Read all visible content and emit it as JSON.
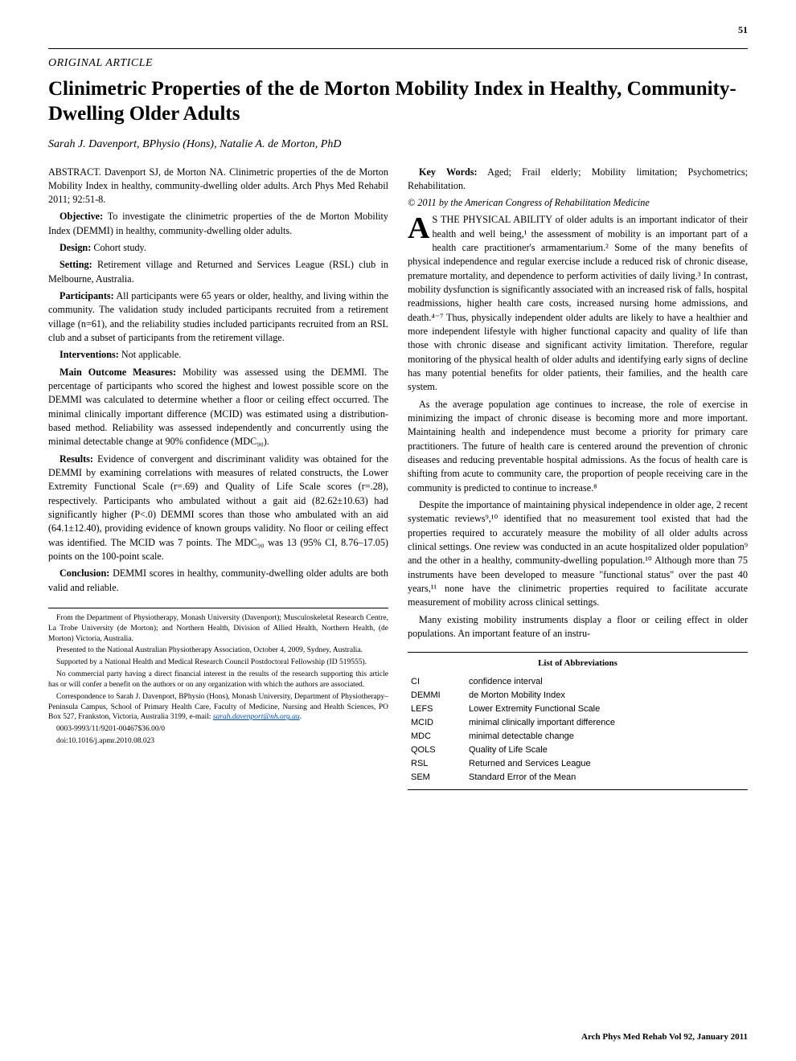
{
  "page_number": "51",
  "section_label": "ORIGINAL ARTICLE",
  "title": "Clinimetric Properties of the de Morton Mobility Index in Healthy, Community-Dwelling Older Adults",
  "authors": "Sarah J. Davenport, BPhysio (Hons), Natalie A. de Morton, PhD",
  "abstract": {
    "citation": "ABSTRACT. Davenport SJ, de Morton NA. Clinimetric properties of the de Morton Mobility Index in healthy, community-dwelling older adults. Arch Phys Med Rehabil 2011; 92:51-8.",
    "objective_label": "Objective:",
    "objective": "To investigate the clinimetric properties of the de Morton Mobility Index (DEMMI) in healthy, community-dwelling older adults.",
    "design_label": "Design:",
    "design": "Cohort study.",
    "setting_label": "Setting:",
    "setting": "Retirement village and Returned and Services League (RSL) club in Melbourne, Australia.",
    "participants_label": "Participants:",
    "participants": "All participants were 65 years or older, healthy, and living within the community. The validation study included participants recruited from a retirement village (n=61), and the reliability studies included participants recruited from an RSL club and a subset of participants from the retirement village.",
    "interventions_label": "Interventions:",
    "interventions": "Not applicable.",
    "measures_label": "Main Outcome Measures:",
    "measures": "Mobility was assessed using the DEMMI. The percentage of participants who scored the highest and lowest possible score on the DEMMI was calculated to determine whether a floor or ceiling effect occurred. The minimal clinically important difference (MCID) was estimated using a distribution-based method. Reliability was assessed independently and concurrently using the minimal detectable change at 90% confidence (MDC₉₀).",
    "results_label": "Results:",
    "results": "Evidence of convergent and discriminant validity was obtained for the DEMMI by examining correlations with measures of related constructs, the Lower Extremity Functional Scale (r=.69) and Quality of Life Scale scores (r=.28), respectively. Participants who ambulated without a gait aid (82.62±10.63) had significantly higher (P<.0) DEMMI scores than those who ambulated with an aid (64.1±12.40), providing evidence of known groups validity. No floor or ceiling effect was identified. The MCID was 7 points. The MDC₉₀ was 13 (95% CI, 8.76–17.05) points on the 100-point scale.",
    "conclusion_label": "Conclusion:",
    "conclusion": "DEMMI scores in healthy, community-dwelling older adults are both valid and reliable."
  },
  "keywords_label": "Key Words:",
  "keywords": "Aged; Frail elderly; Mobility limitation; Psychometrics; Rehabilitation.",
  "copyright": "© 2011 by the American Congress of Rehabilitation Medicine",
  "body": {
    "dropcap": "A",
    "p1": "S THE PHYSICAL ABILITY of older adults is an important indicator of their health and well being,¹ the assessment of mobility is an important part of a health care practitioner's armamentarium.² Some of the many benefits of physical independence and regular exercise include a reduced risk of chronic disease, premature mortality, and dependence to perform activities of daily living.³ In contrast, mobility dysfunction is significantly associated with an increased risk of falls, hospital readmissions, higher health care costs, increased nursing home admissions, and death.⁴⁻⁷ Thus, physically independent older adults are likely to have a healthier and more independent lifestyle with higher functional capacity and quality of life than those with chronic disease and significant activity limitation. Therefore, regular monitoring of the physical health of older adults and identifying early signs of decline has many potential benefits for older patients, their families, and the health care system.",
    "p2": "As the average population age continues to increase, the role of exercise in minimizing the impact of chronic disease is becoming more and more important. Maintaining health and independence must become a priority for primary care practitioners. The future of health care is centered around the prevention of chronic diseases and reducing preventable hospital admissions. As the focus of health care is shifting from acute to community care, the proportion of people receiving care in the community is predicted to continue to increase.⁸",
    "p3": "Despite the importance of maintaining physical independence in older age, 2 recent systematic reviews⁹,¹⁰ identified that no measurement tool existed that had the properties required to accurately measure the mobility of all older adults across clinical settings. One review was conducted in an acute hospitalized older population⁹ and the other in a healthy, community-dwelling population.¹⁰ Although more than 75 instruments have been developed to measure \"functional status\" over the past 40 years,¹¹ none have the clinimetric properties required to facilitate accurate measurement of mobility across clinical settings.",
    "p4": "Many existing mobility instruments display a floor or ceiling effect in older populations. An important feature of an instru-"
  },
  "footnotes": {
    "f1": "From the Department of Physiotherapy, Monash University (Davenport); Musculoskeletal Research Centre, La Trobe University (de Morton); and Northern Health, Division of Allied Health, Northern Health, (de Morton) Victoria, Australia.",
    "f2": "Presented to the National Australian Physiotherapy Association, October 4, 2009, Sydney, Australia.",
    "f3": "Supported by a National Health and Medical Research Council Postdoctoral Fellowship (ID 519555).",
    "f4": "No commercial party having a direct financial interest in the results of the research supporting this article has or will confer a benefit on the authors or on any organization with which the authors are associated.",
    "f5_pre": "Correspondence to Sarah J. Davenport, BPhysio (Hons), Monash University, Department of Physiotherapy–Peninsula Campus, School of Primary Health Care, Faculty of Medicine, Nursing and Health Sciences, PO Box 527, Frankston, Victoria, Australia 3199, e-mail: ",
    "f5_email": "sarah.davenport@nh.org.au",
    "f5_post": ".",
    "f6": "0003-9993/11/9201-00467$36.00/0",
    "f7": "doi:10.1016/j.apmr.2010.08.023"
  },
  "abbreviations": {
    "title": "List of Abbreviations",
    "rows": [
      {
        "k": "CI",
        "v": "confidence interval"
      },
      {
        "k": "DEMMI",
        "v": "de Morton Mobility Index"
      },
      {
        "k": "LEFS",
        "v": "Lower Extremity Functional Scale"
      },
      {
        "k": "MCID",
        "v": "minimal clinically important difference"
      },
      {
        "k": "MDC",
        "v": "minimal detectable change"
      },
      {
        "k": "QOLS",
        "v": "Quality of Life Scale"
      },
      {
        "k": "RSL",
        "v": "Returned and Services League"
      },
      {
        "k": "SEM",
        "v": "Standard Error of the Mean"
      }
    ]
  },
  "journal_footer": "Arch Phys Med Rehab Vol 92, January 2011"
}
